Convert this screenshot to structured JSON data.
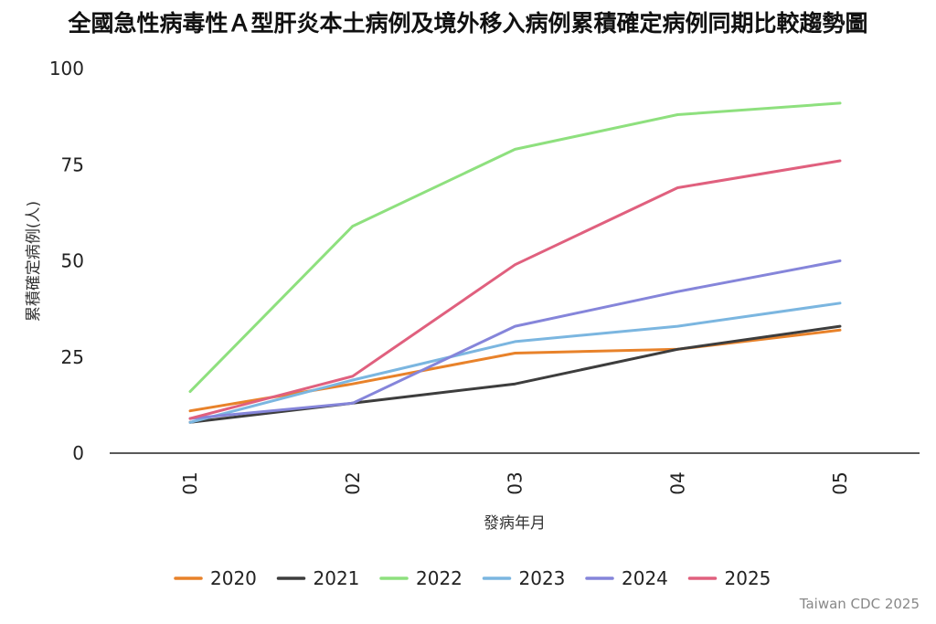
{
  "chart_data": {
    "type": "line",
    "title": "全國急性病毒性Ａ型肝炎本土病例及境外移入病例累積確定病例同期比較趨勢圖",
    "xlabel": "發病年月",
    "ylabel": "累積確定病例(人)",
    "categories": [
      "01",
      "02",
      "03",
      "04",
      "05"
    ],
    "ylim": [
      0,
      100
    ],
    "yticks": [
      0,
      25,
      50,
      75,
      100
    ],
    "grid": false,
    "legend_position": "bottom",
    "series": [
      {
        "name": "2020",
        "color": "#E8822A",
        "values": [
          11,
          18,
          26,
          27,
          32
        ]
      },
      {
        "name": "2021",
        "color": "#3D3D3D",
        "values": [
          8,
          13,
          18,
          27,
          33
        ]
      },
      {
        "name": "2022",
        "color": "#8EE07E",
        "values": [
          16,
          59,
          79,
          88,
          91
        ]
      },
      {
        "name": "2023",
        "color": "#7BB6E0",
        "values": [
          8,
          19,
          29,
          33,
          39
        ]
      },
      {
        "name": "2024",
        "color": "#8585DA",
        "values": [
          9,
          13,
          33,
          42,
          50
        ]
      },
      {
        "name": "2025",
        "color": "#E0607E",
        "values": [
          9,
          20,
          49,
          69,
          76
        ]
      }
    ]
  },
  "source_note": "Taiwan CDC 2025"
}
